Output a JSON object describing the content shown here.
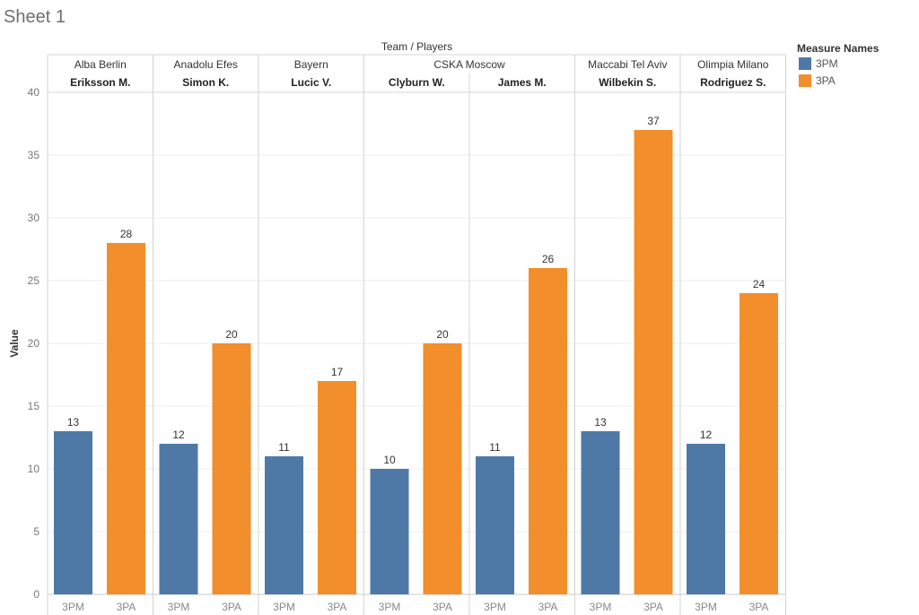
{
  "sheet_title": "Sheet 1",
  "colors": {
    "3PM": "#4e79a7",
    "3PA": "#f28e2b"
  },
  "chart_data": {
    "type": "bar",
    "header_title": "Team  /  Players",
    "ylabel": "Value",
    "ylim": [
      0,
      40
    ],
    "yticks": [
      0,
      5,
      10,
      15,
      20,
      25,
      30,
      35,
      40
    ],
    "measure_labels": [
      "3PM",
      "3PA"
    ],
    "legend": {
      "title": "Measure Names",
      "placement": "right",
      "items": [
        {
          "label": "3PM",
          "color": "#4e79a7"
        },
        {
          "label": "3PA",
          "color": "#f28e2b"
        }
      ]
    },
    "teams": [
      {
        "team": "Alba Berlin",
        "players": [
          {
            "name": "Eriksson M.",
            "values": [
              13,
              28
            ]
          }
        ]
      },
      {
        "team": "Anadolu Efes",
        "players": [
          {
            "name": "Simon K.",
            "values": [
              12,
              20
            ]
          }
        ]
      },
      {
        "team": "Bayern",
        "players": [
          {
            "name": "Lucic V.",
            "values": [
              11,
              17
            ]
          }
        ]
      },
      {
        "team": "CSKA Moscow",
        "players": [
          {
            "name": "Clyburn W.",
            "values": [
              10,
              20
            ]
          },
          {
            "name": "James M.",
            "values": [
              11,
              26
            ]
          }
        ]
      },
      {
        "team": "Maccabi Tel Aviv",
        "players": [
          {
            "name": "Wilbekin S.",
            "values": [
              13,
              37
            ]
          }
        ]
      },
      {
        "team": "Olimpia Milano",
        "players": [
          {
            "name": "Rodriguez S.",
            "values": [
              12,
              24
            ]
          }
        ]
      }
    ]
  }
}
